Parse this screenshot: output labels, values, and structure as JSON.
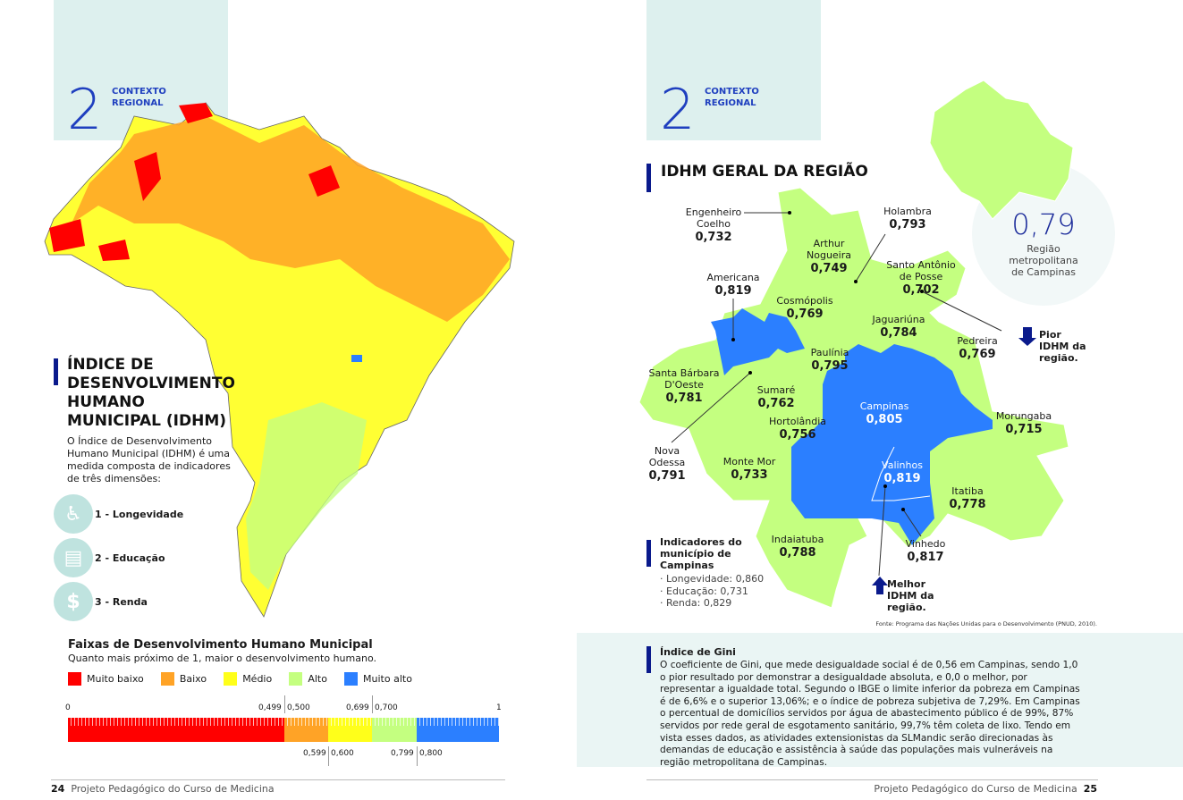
{
  "left": {
    "section_number": "2",
    "section_title": "CONTEXTO REGIONAL",
    "heading": "ÍNDICE DE DESENVOLVIMENTO HUMANO MUNICIPAL (IDHM)",
    "intro": "O Índice de Desenvolvimento Humano Municipal (IDHM) é uma medida composta de indicadores de três dimensões:",
    "dimensions": [
      {
        "label": "1 - Longevidade",
        "icon": "elderly-person-icon"
      },
      {
        "label": "2 - Educação",
        "icon": "book-icon"
      },
      {
        "label": "3 - Renda",
        "icon": "dollar-icon"
      }
    ],
    "scale": {
      "title": "Faixas de Desenvolvimento Humano Municipal",
      "subtitle": "Quanto mais próximo de 1, maior o desenvolvimento humano.",
      "legend": [
        {
          "label": "Muito baixo",
          "color": "#ff0000"
        },
        {
          "label": "Baixo",
          "color": "#ffa326"
        },
        {
          "label": "Médio",
          "color": "#ffff1a"
        },
        {
          "label": "Alto",
          "color": "#c4ff80"
        },
        {
          "label": "Muito alto",
          "color": "#2b7fff"
        }
      ],
      "ticks_top": [
        "0",
        "0,499",
        "0,500",
        "0,699",
        "0,700",
        "1"
      ],
      "ticks_bottom": [
        "0,599",
        "0,600",
        "0,799",
        "0,800"
      ]
    },
    "footer_page": "24",
    "footer_text": "Projeto Pedagógico do Curso de Medicina"
  },
  "right": {
    "section_number": "2",
    "section_title": "CONTEXTO REGIONAL",
    "heading": "IDHM GERAL DA REGIÃO",
    "region_value": "0,79",
    "region_label": "Região metropolitana de Campinas",
    "municipalities": [
      {
        "name": "Engenheiro Coelho",
        "value": "0,732"
      },
      {
        "name": "Holambra",
        "value": "0,793"
      },
      {
        "name": "Arthur Nogueira",
        "value": "0,749"
      },
      {
        "name": "Santo Antônio de Posse",
        "value": "0,702"
      },
      {
        "name": "Americana",
        "value": "0,819"
      },
      {
        "name": "Cosmópolis",
        "value": "0,769"
      },
      {
        "name": "Jaguariúna",
        "value": "0,784"
      },
      {
        "name": "Pedreira",
        "value": "0,769"
      },
      {
        "name": "Paulínia",
        "value": "0,795"
      },
      {
        "name": "Santa Bárbara D'Oeste",
        "value": "0,781"
      },
      {
        "name": "Sumaré",
        "value": "0,762"
      },
      {
        "name": "Campinas",
        "value": "0,805"
      },
      {
        "name": "Hortolândia",
        "value": "0,756"
      },
      {
        "name": "Morungaba",
        "value": "0,715"
      },
      {
        "name": "Nova Odessa",
        "value": "0,791"
      },
      {
        "name": "Monte Mor",
        "value": "0,733"
      },
      {
        "name": "Valinhos",
        "value": "0,819"
      },
      {
        "name": "Itatiba",
        "value": "0,778"
      },
      {
        "name": "Indaiatuba",
        "value": "0,788"
      },
      {
        "name": "Vinhedo",
        "value": "0,817"
      }
    ],
    "worst": "Pior IDHM da região.",
    "best": "Melhor IDHM da região.",
    "indicators": {
      "title": "Indicadores do município de Campinas",
      "items": [
        "Longevidade: 0,860",
        "Educação: 0,731",
        "Renda: 0,829"
      ]
    },
    "source": "Fonte: Programa das Nações Unidas para o Desenvolvimento (PNUD, 2010).",
    "gini": {
      "title": "Índice de Gini",
      "text": "O coeficiente de Gini, que mede desigualdade social é de 0,56 em Campinas, sendo 1,0 o pior resultado por demonstrar a desigualdade absoluta, e 0,0 o melhor, por representar a igualdade total. Segundo o IBGE o limite inferior da pobreza em Campinas é de 6,6% e o superior 13,06%; e o índice de pobreza subjetiva de 7,29%. Em Campinas o percentual de domicílios servidos por água de abastecimento público é de 99%, 87% servidos por rede geral de esgotamento sanitário, 99,7% têm coleta de lixo. Tendo em vista esses dados, as atividades extensionistas da SLMandic serão direcionadas às demandas de educação e assistência à saúde das populações mais vulneráveis na região metropolitana de Campinas."
    },
    "footer_page": "25",
    "footer_text": "Projeto Pedagógico do Curso de Medicina"
  }
}
